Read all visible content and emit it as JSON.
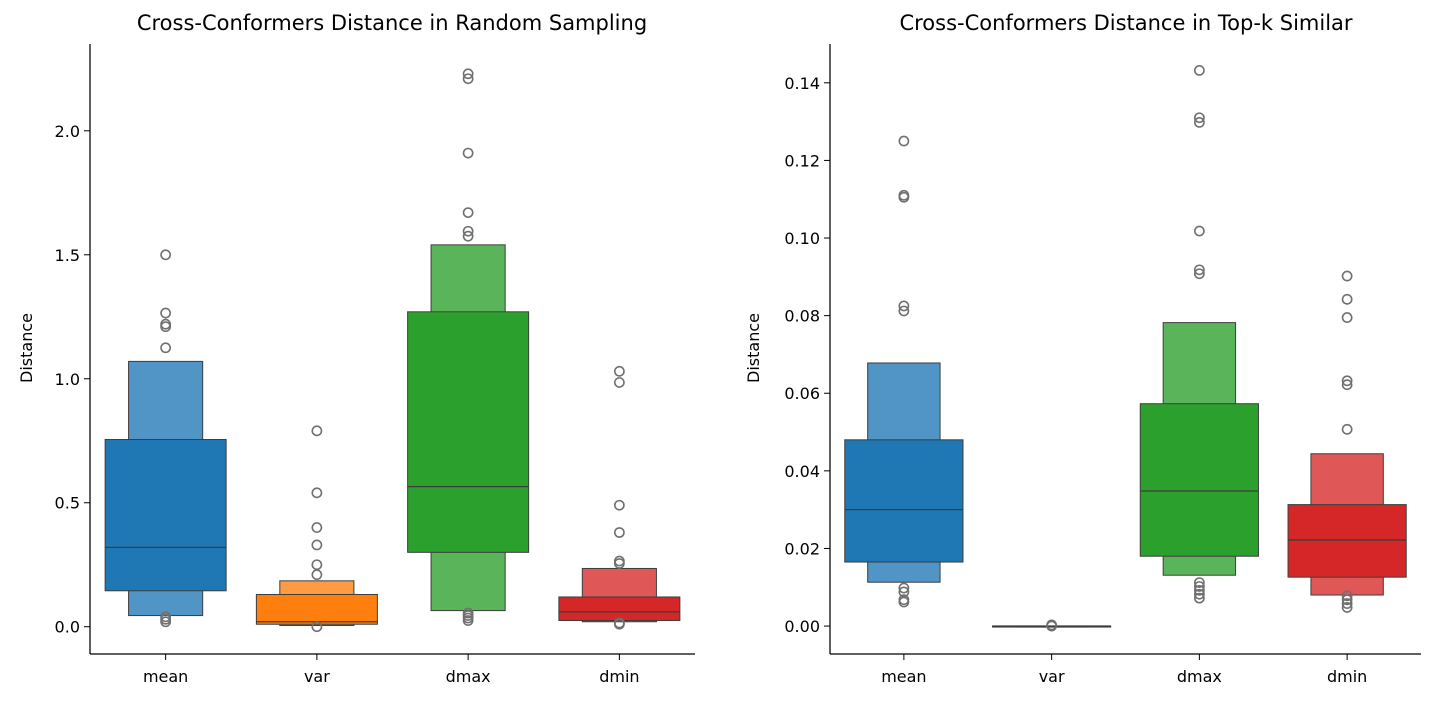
{
  "chart_data": [
    {
      "type": "boxen",
      "title": "Cross-Conformers Distance in Random Sampling",
      "xlabel": "",
      "ylabel": "Distance",
      "ylim": [
        -0.11,
        2.35
      ],
      "yticks": [
        0.0,
        0.5,
        1.0,
        1.5,
        2.0
      ],
      "ytick_labels": [
        "0.0",
        "0.5",
        "1.0",
        "1.5",
        "2.0"
      ],
      "categories": [
        "mean",
        "var",
        "dmax",
        "dmin"
      ],
      "colors": [
        "#1f77b4",
        "#ff7f0e",
        "#2ca02c",
        "#d62728"
      ],
      "boxes": [
        {
          "category": "mean",
          "median": 0.32,
          "levels": [
            [
              0.145,
              0.755
            ],
            [
              0.045,
              1.07
            ]
          ],
          "outliers": [
            1.5,
            1.265,
            1.22,
            1.21,
            1.125,
            0.04,
            0.03,
            0.02
          ]
        },
        {
          "category": "var",
          "median": 0.02,
          "levels": [
            [
              0.01,
              0.13
            ],
            [
              0.005,
              0.185
            ]
          ],
          "outliers": [
            0.79,
            0.54,
            0.4,
            0.33,
            0.25,
            0.21,
            0.0
          ]
        },
        {
          "category": "dmax",
          "median": 0.565,
          "levels": [
            [
              0.3,
              1.27
            ],
            [
              0.065,
              1.54
            ]
          ],
          "outliers": [
            2.23,
            2.21,
            1.91,
            1.67,
            1.595,
            1.575,
            0.055,
            0.045,
            0.035,
            0.025
          ]
        },
        {
          "category": "dmin",
          "median": 0.06,
          "levels": [
            [
              0.025,
              0.12
            ],
            [
              0.02,
              0.235
            ]
          ],
          "outliers": [
            1.03,
            0.985,
            0.49,
            0.38,
            0.265,
            0.255,
            0.015,
            0.01
          ]
        }
      ]
    },
    {
      "type": "boxen",
      "title": "Cross-Conformers Distance in Top-k Similar",
      "xlabel": "",
      "ylabel": "Distance",
      "ylim": [
        -0.0072,
        0.15
      ],
      "yticks": [
        0.0,
        0.02,
        0.04,
        0.06,
        0.08,
        0.1,
        0.12,
        0.14
      ],
      "ytick_labels": [
        "0.00",
        "0.02",
        "0.04",
        "0.06",
        "0.08",
        "0.10",
        "0.12",
        "0.14"
      ],
      "categories": [
        "mean",
        "var",
        "dmax",
        "dmin"
      ],
      "colors": [
        "#1f77b4",
        "#ff7f0e",
        "#2ca02c",
        "#d62728"
      ],
      "boxes": [
        {
          "category": "mean",
          "median": 0.03,
          "levels": [
            [
              0.0165,
              0.048
            ],
            [
              0.0113,
              0.0678
            ]
          ],
          "outliers": [
            0.125,
            0.111,
            0.1105,
            0.0825,
            0.0812,
            0.0098,
            0.0088,
            0.0068,
            0.0062
          ]
        },
        {
          "category": "var",
          "median": 0.0,
          "levels": [
            [
              0.0,
              0.0
            ],
            [
              0.0,
              0.0
            ]
          ],
          "outliers": [
            0.0003,
            0.0
          ]
        },
        {
          "category": "dmax",
          "median": 0.0348,
          "levels": [
            [
              0.018,
              0.0573
            ],
            [
              0.0131,
              0.0782
            ]
          ],
          "outliers": [
            0.1432,
            0.131,
            0.1298,
            0.1018,
            0.0918,
            0.0908,
            0.0112,
            0.0102,
            0.0092,
            0.0082,
            0.0072
          ]
        },
        {
          "category": "dmin",
          "median": 0.0222,
          "levels": [
            [
              0.0126,
              0.0313
            ],
            [
              0.008,
              0.0444
            ]
          ],
          "outliers": [
            0.0902,
            0.0842,
            0.0795,
            0.0632,
            0.0622,
            0.0507,
            0.0078,
            0.0068,
            0.0058,
            0.0048
          ]
        }
      ]
    }
  ]
}
